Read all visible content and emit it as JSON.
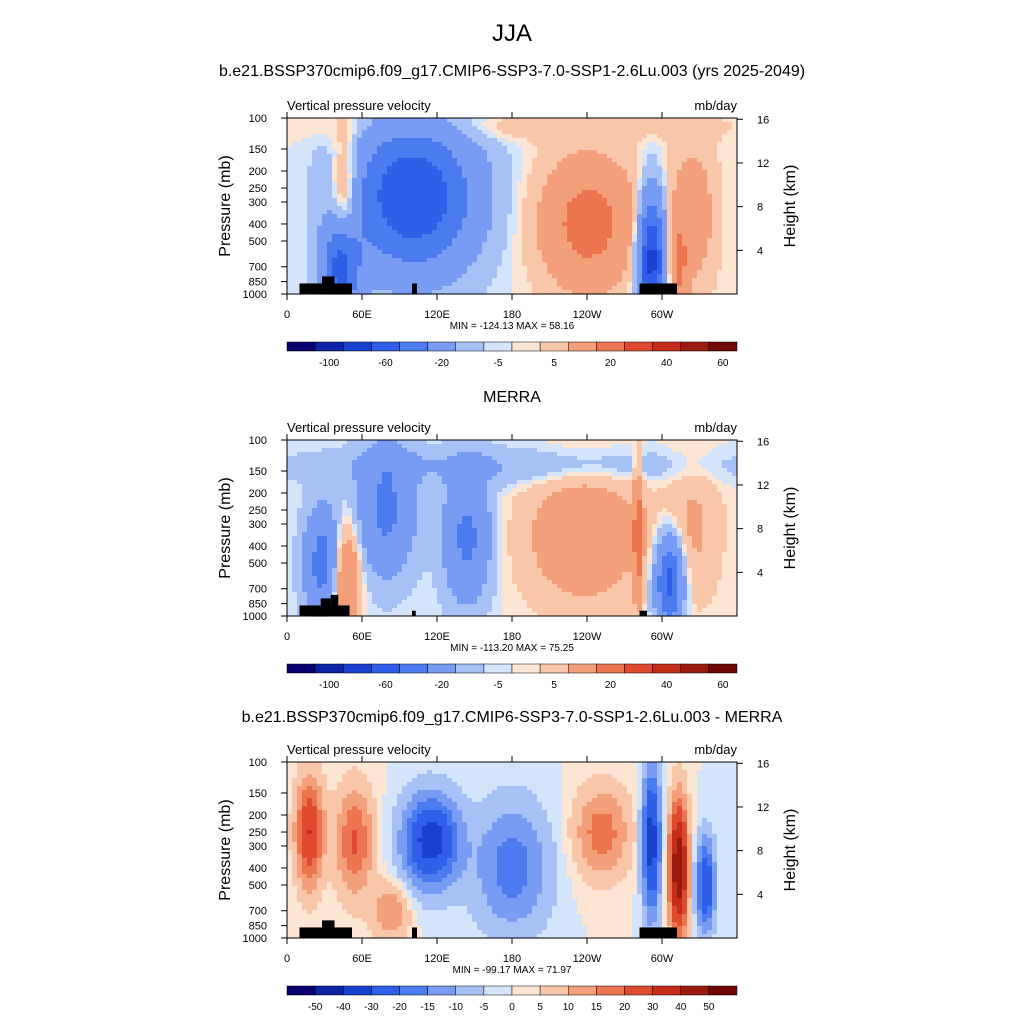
{
  "figure": {
    "title": "JJA"
  },
  "colors": {
    "levels_std": [
      "#08006e",
      "#0c23a6",
      "#1941cf",
      "#2f5ee8",
      "#4a7cf0",
      "#789cf3",
      "#a7c1f7",
      "#d3e4fb",
      "#fde5d3",
      "#f9c6a9",
      "#f3a07a",
      "#ec7550",
      "#e04a2f",
      "#c52c1a",
      "#9b1a0e",
      "#6e0808"
    ],
    "levels_diff": [
      "#08006e",
      "#0c23a6",
      "#1941cf",
      "#2f5ee8",
      "#4a7cf0",
      "#789cf3",
      "#a7c1f7",
      "#d3e4fb",
      "#fde5d3",
      "#f9c6a9",
      "#f3a07a",
      "#ec7550",
      "#e04a2f",
      "#c52c1a",
      "#9b1a0e",
      "#6e0808"
    ]
  },
  "chart_data": [
    {
      "type": "heatmap",
      "title": "b.e21.BSSP370cmip6.f09_g17.CMIP6-SSP3-7.0-SSP1-2.6Lu.003 (yrs 2025-2049)",
      "left_label": "Vertical pressure velocity",
      "right_label": "mb/day",
      "ylabel": "Pressure (mb)",
      "ylabel_right": "Height (km)",
      "x_ticks": [
        "0",
        "60E",
        "120E",
        "180",
        "120W",
        "60W"
      ],
      "y_ticks": [
        "100",
        "150",
        "200",
        "250",
        "300",
        "400",
        "500",
        "700",
        "850",
        "1000"
      ],
      "y_right_ticks": [
        "16",
        "12",
        "8",
        "4"
      ],
      "stats": "MIN = -124.13  MAX =  58.16",
      "colorbar_labels": [
        "-100",
        "-60",
        "-20",
        "-5",
        "5",
        "20",
        "40",
        "60"
      ],
      "x_range": [
        "0",
        "360"
      ],
      "y_range": [
        1000,
        100
      ]
    },
    {
      "type": "heatmap",
      "title": "MERRA",
      "left_label": "Vertical pressure velocity",
      "right_label": "mb/day",
      "ylabel": "Pressure (mb)",
      "ylabel_right": "Height (km)",
      "x_ticks": [
        "0",
        "60E",
        "120E",
        "180",
        "120W",
        "60W"
      ],
      "y_ticks": [
        "100",
        "150",
        "200",
        "250",
        "300",
        "400",
        "500",
        "700",
        "850",
        "1000"
      ],
      "y_right_ticks": [
        "16",
        "12",
        "8",
        "4"
      ],
      "stats": "MIN = -113.20  MAX =  75.25",
      "colorbar_labels": [
        "-100",
        "-60",
        "-20",
        "-5",
        "5",
        "20",
        "40",
        "60"
      ],
      "x_range": [
        "0",
        "360"
      ],
      "y_range": [
        1000,
        100
      ]
    },
    {
      "type": "heatmap",
      "title": "b.e21.BSSP370cmip6.f09_g17.CMIP6-SSP3-7.0-SSP1-2.6Lu.003 - MERRA",
      "left_label": "Vertical pressure velocity",
      "right_label": "mb/day",
      "ylabel": "Pressure (mb)",
      "ylabel_right": "Height (km)",
      "x_ticks": [
        "0",
        "60E",
        "120E",
        "180",
        "120W",
        "60W"
      ],
      "y_ticks": [
        "100",
        "150",
        "200",
        "250",
        "300",
        "400",
        "500",
        "700",
        "850",
        "1000"
      ],
      "y_right_ticks": [
        "16",
        "12",
        "8",
        "4"
      ],
      "stats": "MIN = -99.17  MAX =  71.97",
      "colorbar_labels": [
        "-50",
        "-40",
        "-30",
        "-20",
        "-15",
        "-10",
        "-5",
        "0",
        "5",
        "10",
        "15",
        "20",
        "30",
        "40",
        "50"
      ],
      "x_range": [
        "0",
        "360"
      ],
      "y_range": [
        1000,
        100
      ]
    }
  ]
}
